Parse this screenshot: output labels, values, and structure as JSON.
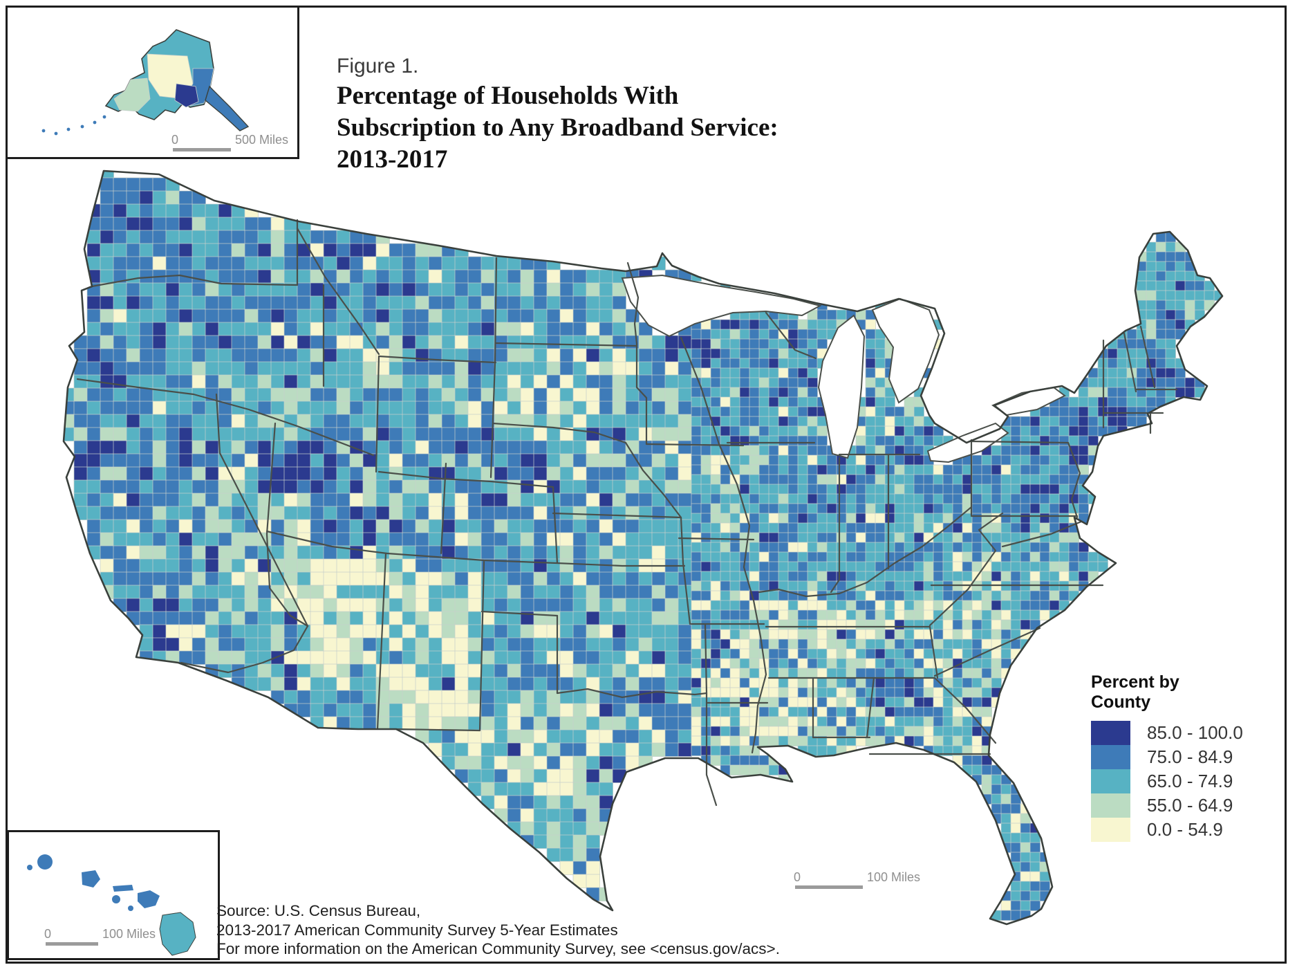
{
  "figure": {
    "label": "Figure 1.",
    "title_lines": [
      "Percentage of Households With",
      "Subscription to Any Broadband Service:",
      "2013-2017"
    ]
  },
  "legend": {
    "title_lines": [
      "Percent by",
      "County"
    ],
    "classes": [
      {
        "label": "85.0 - 100.0",
        "color": "#2B3A8F"
      },
      {
        "label": "75.0 - 84.9",
        "color": "#3E7BB8"
      },
      {
        "label": "65.0 - 74.9",
        "color": "#57B2C3"
      },
      {
        "label": "55.0 - 64.9",
        "color": "#BBDCC2"
      },
      {
        "label": "0.0 - 54.9",
        "color": "#F8F6D0"
      }
    ]
  },
  "scale_bars": {
    "main": {
      "start": "0",
      "end": "100 Miles"
    },
    "alaska": {
      "start": "0",
      "end": "500 Miles"
    },
    "hawaii": {
      "start": "0",
      "end": "100 Miles"
    }
  },
  "source_lines": [
    "Source: U.S. Census Bureau,",
    "2013-2017 American Community Survey 5-Year Estimates",
    "For more information on the American Community Survey, see <census.gov/acs>."
  ],
  "map_colors": {
    "water": "#FFFFFF",
    "county_border": "#C6CFCB",
    "state_border": "#4A4F4A",
    "outline": "#3A403C"
  }
}
